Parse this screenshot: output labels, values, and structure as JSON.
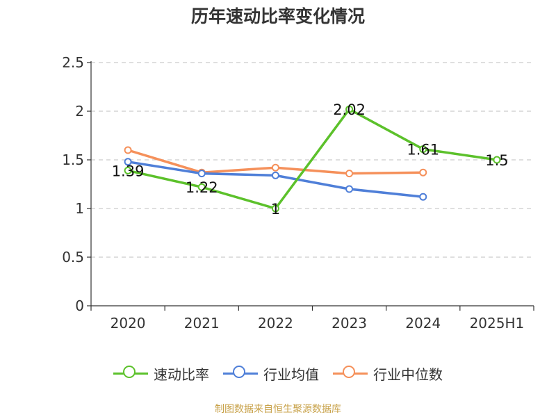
{
  "chart_data": {
    "type": "line",
    "title": "历年速动比率变化情况",
    "categories": [
      "2020",
      "2021",
      "2022",
      "2023",
      "2024",
      "2025H1"
    ],
    "ylim": [
      0,
      2.5
    ],
    "yticks": [
      "0",
      "0.5",
      "1",
      "1.5",
      "2",
      "2.5"
    ],
    "ytick_values": [
      0,
      0.5,
      1,
      1.5,
      2,
      2.5
    ],
    "grid": true,
    "legend_position": "bottom",
    "series": [
      {
        "name": "速动比率",
        "color": "#5cc12b",
        "values": [
          1.39,
          1.22,
          1.0,
          2.02,
          1.61,
          1.5
        ],
        "labels": [
          "1.39",
          "1.22",
          "1",
          "2.02",
          "1.61",
          "1.5"
        ]
      },
      {
        "name": "行业均值",
        "color": "#4f7fd8",
        "values": [
          1.48,
          1.36,
          1.34,
          1.2,
          1.12,
          null
        ]
      },
      {
        "name": "行业中位数",
        "color": "#f5905a",
        "values": [
          1.6,
          1.37,
          1.42,
          1.36,
          1.37,
          null
        ]
      }
    ]
  },
  "source_note": "制图数据来自恒生聚源数据库"
}
